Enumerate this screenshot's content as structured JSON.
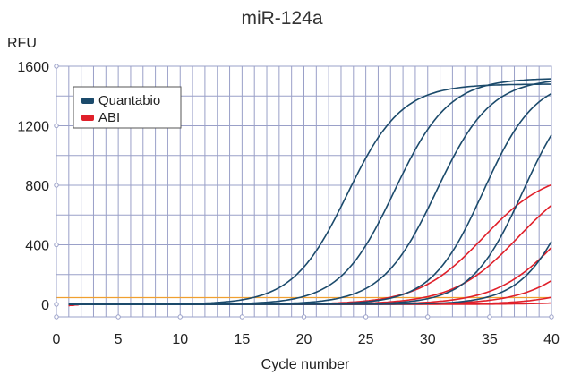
{
  "chart_data": {
    "type": "line",
    "title": "miR-124a",
    "ylabel": "RFU",
    "xlabel": "Cycle number",
    "xlim": [
      0,
      40
    ],
    "ylim": [
      0,
      1600
    ],
    "x_ticks": [
      0,
      5,
      10,
      15,
      20,
      25,
      30,
      35,
      40
    ],
    "y_ticks": [
      0,
      400,
      800,
      1200,
      1600
    ],
    "grid": true,
    "legend_position": "top-left",
    "threshold": 45,
    "threshold_color": "#f0a030",
    "legend": [
      {
        "label": "Quantabio",
        "color": "#1b4a6b"
      },
      {
        "label": "ABI",
        "color": "#e0202a"
      }
    ],
    "series": [
      {
        "group": "Quantabio",
        "color": "#1b4a6b",
        "params": {
          "max": 1480,
          "mid": 23.5,
          "slope": 2.2
        }
      },
      {
        "group": "Quantabio",
        "color": "#1b4a6b",
        "params": {
          "max": 1520,
          "mid": 27.3,
          "slope": 2.2
        }
      },
      {
        "group": "Quantabio",
        "color": "#1b4a6b",
        "params": {
          "max": 1520,
          "mid": 30.7,
          "slope": 2.2
        }
      },
      {
        "group": "Quantabio",
        "color": "#1b4a6b",
        "params": {
          "max": 1520,
          "mid": 34.5,
          "slope": 2.1
        }
      },
      {
        "group": "Quantabio",
        "color": "#1b4a6b",
        "params": {
          "max": 1520,
          "mid": 37.7,
          "slope": 2.1
        }
      },
      {
        "group": "Quantabio",
        "color": "#1b4a6b",
        "params": {
          "max": 1520,
          "mid": 42.0,
          "slope": 2.1
        }
      },
      {
        "group": "ABI",
        "color": "#e0202a",
        "params": {
          "max": 900,
          "mid": 34.5,
          "slope": 2.6
        }
      },
      {
        "group": "ABI",
        "color": "#e0202a",
        "params": {
          "max": 900,
          "mid": 37.3,
          "slope": 2.6
        }
      },
      {
        "group": "ABI",
        "color": "#e0202a",
        "params": {
          "max": 900,
          "mid": 40.8,
          "slope": 2.6
        }
      },
      {
        "group": "ABI",
        "color": "#e0202a",
        "params": {
          "max": 900,
          "mid": 44.0,
          "slope": 2.6
        }
      },
      {
        "group": "ABI",
        "color": "#e0202a",
        "params": {
          "max": 900,
          "mid": 47.5,
          "slope": 2.6
        }
      },
      {
        "group": "ABI",
        "color": "#e0202a",
        "params": {
          "max": 900,
          "mid": 52.0,
          "slope": 2.6
        }
      }
    ]
  }
}
